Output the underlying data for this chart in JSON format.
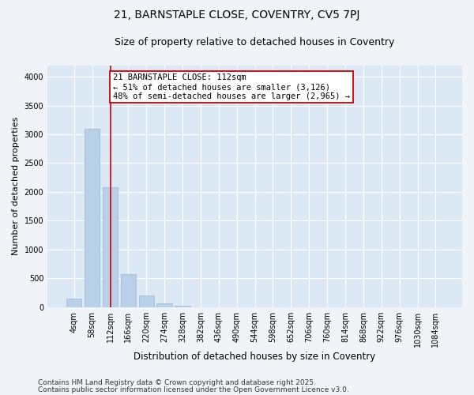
{
  "title": "21, BARNSTAPLE CLOSE, COVENTRY, CV5 7PJ",
  "subtitle": "Size of property relative to detached houses in Coventry",
  "xlabel": "Distribution of detached houses by size in Coventry",
  "ylabel": "Number of detached properties",
  "footnote1": "Contains HM Land Registry data © Crown copyright and database right 2025.",
  "footnote2": "Contains public sector information licensed under the Open Government Licence v3.0.",
  "categories": [
    "4sqm",
    "58sqm",
    "112sqm",
    "166sqm",
    "220sqm",
    "274sqm",
    "328sqm",
    "382sqm",
    "436sqm",
    "490sqm",
    "544sqm",
    "598sqm",
    "652sqm",
    "706sqm",
    "760sqm",
    "814sqm",
    "868sqm",
    "922sqm",
    "976sqm",
    "1030sqm",
    "1084sqm"
  ],
  "values": [
    150,
    3100,
    2080,
    580,
    210,
    70,
    30,
    0,
    0,
    0,
    0,
    0,
    0,
    0,
    0,
    0,
    0,
    0,
    0,
    0,
    0
  ],
  "bar_color": "#b8d0e8",
  "bar_edge_color": "#9ab8d8",
  "vline_x_index": 2,
  "vline_color": "#cc0000",
  "annotation_text": "21 BARNSTAPLE CLOSE: 112sqm\n← 51% of detached houses are smaller (3,126)\n48% of semi-detached houses are larger (2,965) →",
  "annotation_box_edgecolor": "#cc0000",
  "annotation_box_facecolor": "#ffffff",
  "ylim": [
    0,
    4200
  ],
  "yticks": [
    0,
    500,
    1000,
    1500,
    2000,
    2500,
    3000,
    3500,
    4000
  ],
  "fig_background_color": "#f0f4f8",
  "plot_background_color": "#dce8f4",
  "grid_color": "#ffffff",
  "title_fontsize": 10,
  "subtitle_fontsize": 9,
  "xlabel_fontsize": 8.5,
  "ylabel_fontsize": 8,
  "tick_fontsize": 7,
  "annotation_fontsize": 7.5,
  "footnote_fontsize": 6.5
}
